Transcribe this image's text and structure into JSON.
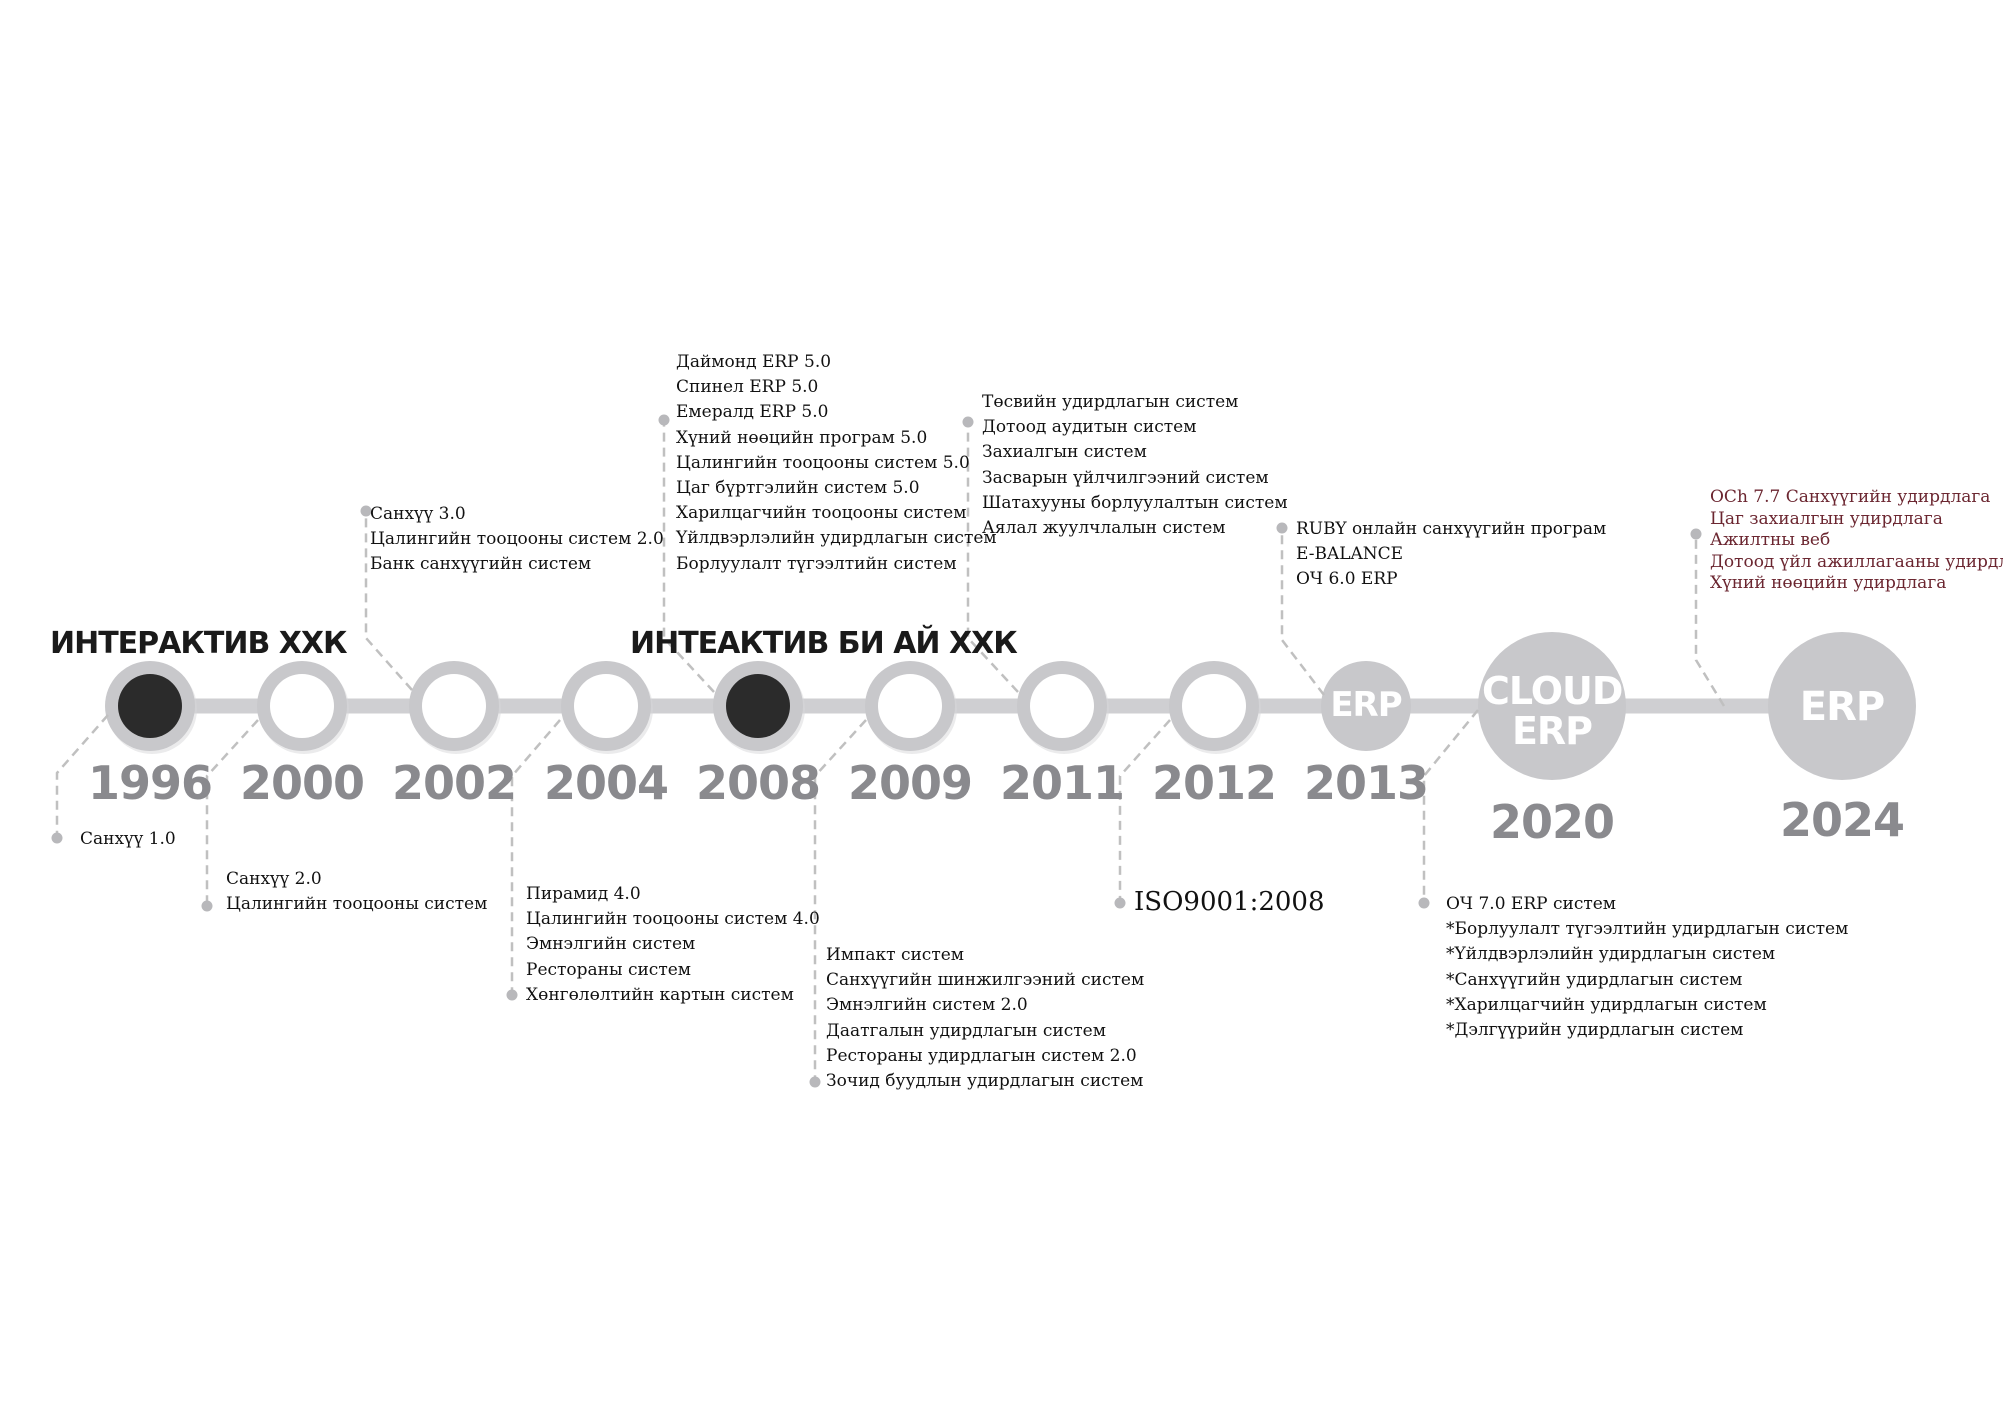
{
  "colors": {
    "line": "#cfcfd2",
    "node": "#c8c8cb",
    "filled": "#2b2b2b",
    "year": "#8a8a8e",
    "dash": "#c0c0c0",
    "accent_text": "#6b2630"
  },
  "companies": [
    "ИНТЕРАКТИВ ХХК",
    "ИНТЕАКТИВ БИ АЙ ХХК"
  ],
  "nodes": [
    {
      "year": "1996",
      "filled": true,
      "text": ""
    },
    {
      "year": "2000",
      "filled": false,
      "text": ""
    },
    {
      "year": "2002",
      "filled": false,
      "text": ""
    },
    {
      "year": "2004",
      "filled": false,
      "text": ""
    },
    {
      "year": "2008",
      "filled": true,
      "text": ""
    },
    {
      "year": "2009",
      "filled": false,
      "text": ""
    },
    {
      "year": "2011",
      "filled": false,
      "text": ""
    },
    {
      "year": "2012",
      "filled": false,
      "text": ""
    },
    {
      "year": "2013",
      "filled": false,
      "text": "ERP"
    },
    {
      "year": "2020",
      "filled": false,
      "text": "CLOUD\nERP"
    },
    {
      "year": "2024",
      "filled": false,
      "text": "ERP"
    }
  ],
  "milestones": {
    "m1996": [
      "Санхүү 1.0"
    ],
    "m2000": [
      "Санхүү 2.0",
      "Цалингийн тооцооны систем"
    ],
    "m2002": [
      "Санхүү 3.0",
      "Цалингийн тооцооны систем 2.0",
      "Банк санхүүгийн систем"
    ],
    "m2004": [
      "Пирамид 4.0",
      "Цалингийн тооцооны систем 4.0",
      "Эмнэлгийн систем",
      "Рестораны систем",
      "Хөнгөлөлтийн картын систем"
    ],
    "m2008": [
      "Даймонд ERP 5.0",
      "Спинел ERP 5.0",
      "Емералд ERP 5.0",
      "Хүний нөөцийн програм 5.0",
      "Цалингийн тооцооны систем 5.0",
      "Цаг бүртгэлийн систем 5.0",
      "Харилцагчийн тооцооны систем",
      "Үйлдвэрлэлийн удирдлагын систем",
      "Борлуулалт түгээлтийн систем"
    ],
    "m2009": [
      "Импакт систем",
      "Санхүүгийн шинжилгээний систем",
      "Эмнэлгийн систем 2.0",
      "Даатгалын удирдлагын систем",
      "Рестораны удирдлагын систем 2.0",
      "Зочид буудлын удирдлагын систем"
    ],
    "m2011": [
      "Төсвийн удирдлагын систем",
      "Дотоод аудитын систем",
      "Захиалгын систем",
      "Засварын үйлчилгээний систем",
      "Шатахууны борлуулалтын систем",
      "Аялал жуулчлалын систем"
    ],
    "m2012": [
      "ISO9001:2008"
    ],
    "m2013": [
      "RUBY онлайн санхүүгийн програм",
      "E-BALANCE",
      "ОЧ 6.0 ERP"
    ],
    "m2020": [
      "ОЧ 7.0 ERP систем",
      "*Борлуулалт түгээлтийн удирдлагын систем",
      "*Үйлдвэрлэлийн удирдлагын систем",
      "*Санхүүгийн удирдлагын систем",
      "*Харилцагчийн удирдлагын систем",
      "*Дэлгүүрийн удирдлагын систем"
    ],
    "m2024": [
      "OCh 7.7 Санхүүгийн удирдлага",
      "Цаг захиалгын удирдлага",
      "Ажилтны веб",
      "Дотоод үйл ажиллагааны удирдлага",
      "Хүний нөөцийн удирдлага"
    ]
  }
}
